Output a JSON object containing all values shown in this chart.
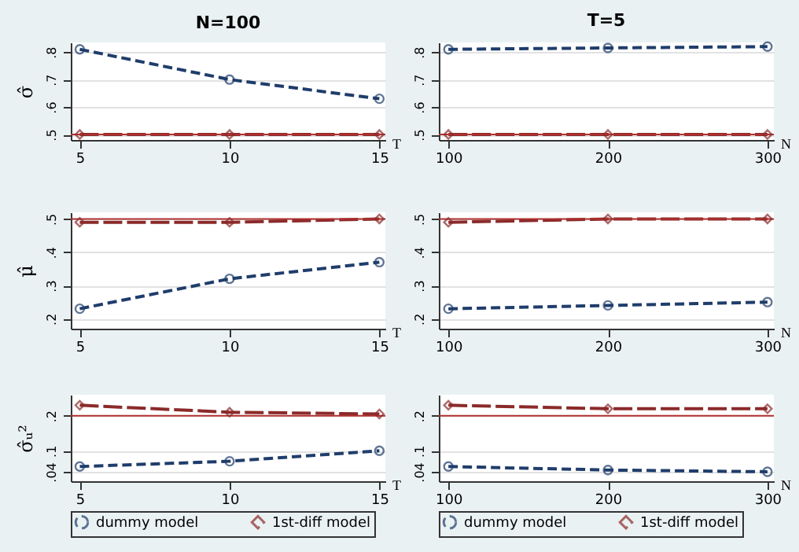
{
  "chart_data": [
    {
      "type": "line",
      "title": "N=100",
      "xlabel": "T",
      "ylabel": "σ̂",
      "x": [
        5,
        10,
        15
      ],
      "xlim": [
        4.7,
        15.2
      ],
      "xticks": [
        5,
        10,
        15
      ],
      "ylim": [
        0.48,
        0.835
      ],
      "yticks": [
        {
          "value": 0.5,
          "label": ".5"
        },
        {
          "value": 0.6,
          "label": ".6"
        },
        {
          "value": 0.7,
          "label": ".7"
        },
        {
          "value": 0.8,
          "label": ".8"
        }
      ],
      "grid": "y",
      "legend": false,
      "line_style": "dashed",
      "ref_lines": [
        {
          "axis": "y",
          "value": 0.5,
          "color": "#b03030"
        }
      ],
      "series": [
        {
          "color": "#1f3d6b",
          "marker": "circle",
          "values": [
            0.81,
            0.7,
            0.63
          ]
        },
        {
          "color": "#8b2a2a",
          "marker": "diamond",
          "values": [
            0.5,
            0.5,
            0.5
          ]
        }
      ]
    },
    {
      "type": "line",
      "title": "T=5",
      "xlabel": "N",
      "x": [
        100,
        200,
        300
      ],
      "xlim": [
        94,
        304
      ],
      "xticks": [
        100,
        200,
        300
      ],
      "ylim": [
        0.48,
        0.835
      ],
      "yticks": [
        {
          "value": 0.5,
          "label": ".5"
        },
        {
          "value": 0.6,
          "label": ".6"
        },
        {
          "value": 0.7,
          "label": ".7"
        },
        {
          "value": 0.8,
          "label": ".8"
        }
      ],
      "grid": "y",
      "legend": false,
      "line_style": "dashed",
      "ref_lines": [
        {
          "axis": "y",
          "value": 0.5,
          "color": "#b03030"
        }
      ],
      "series": [
        {
          "color": "#1f3d6b",
          "marker": "circle",
          "values": [
            0.81,
            0.815,
            0.82
          ]
        },
        {
          "color": "#8b2a2a",
          "marker": "diamond",
          "values": [
            0.5,
            0.5,
            0.5
          ]
        }
      ]
    },
    {
      "type": "line",
      "xlabel": "T",
      "ylabel": "μ̂",
      "x": [
        5,
        10,
        15
      ],
      "xlim": [
        4.7,
        15.2
      ],
      "xticks": [
        5,
        10,
        15
      ],
      "ylim": [
        0.17,
        0.52
      ],
      "yticks": [
        {
          "value": 0.2,
          "label": ".2"
        },
        {
          "value": 0.3,
          "label": ".3"
        },
        {
          "value": 0.4,
          "label": ".4"
        },
        {
          "value": 0.5,
          "label": ".5"
        }
      ],
      "grid": "y",
      "legend": false,
      "line_style": "dashed",
      "ref_lines": [
        {
          "axis": "y",
          "value": 0.5,
          "color": "#b03030"
        }
      ],
      "series": [
        {
          "color": "#1f3d6b",
          "marker": "circle",
          "values": [
            0.23,
            0.32,
            0.37
          ]
        },
        {
          "color": "#8b2a2a",
          "marker": "diamond",
          "values": [
            0.49,
            0.49,
            0.5
          ]
        }
      ]
    },
    {
      "type": "line",
      "xlabel": "N",
      "x": [
        100,
        200,
        300
      ],
      "xlim": [
        94,
        304
      ],
      "xticks": [
        100,
        200,
        300
      ],
      "ylim": [
        0.17,
        0.52
      ],
      "yticks": [
        {
          "value": 0.2,
          "label": ".2"
        },
        {
          "value": 0.3,
          "label": ".3"
        },
        {
          "value": 0.4,
          "label": ".4"
        },
        {
          "value": 0.5,
          "label": ".5"
        }
      ],
      "grid": "y",
      "legend": false,
      "line_style": "dashed",
      "ref_lines": [
        {
          "axis": "y",
          "value": 0.5,
          "color": "#b03030"
        }
      ],
      "series": [
        {
          "color": "#1f3d6b",
          "marker": "circle",
          "values": [
            0.23,
            0.24,
            0.25
          ]
        },
        {
          "color": "#8b2a2a",
          "marker": "diamond",
          "values": [
            0.49,
            0.5,
            0.5
          ]
        }
      ]
    },
    {
      "type": "line",
      "xlabel": "T",
      "ylabel": "σ̂ᵤ²",
      "x": [
        5,
        10,
        15
      ],
      "xlim": [
        4.7,
        15.2
      ],
      "xticks": [
        5,
        10,
        15
      ],
      "ylim": [
        0.013,
        0.26
      ],
      "yticks": [
        {
          "value": 0.04,
          "label": ".04"
        },
        {
          "value": 0.1,
          "label": ".1"
        },
        {
          "value": 0.2,
          "label": ".2"
        }
      ],
      "grid": "y",
      "legend": "bottom",
      "line_style": "dashed",
      "ref_lines": [
        {
          "axis": "y",
          "value": 0.2,
          "color": "#b03030"
        }
      ],
      "series": [
        {
          "name": "dummy model",
          "color": "#1f3d6b",
          "marker": "circle",
          "values": [
            0.055,
            0.07,
            0.1
          ]
        },
        {
          "name": "1st-diff model",
          "color": "#8b2a2a",
          "marker": "diamond",
          "values": [
            0.23,
            0.21,
            0.205
          ]
        }
      ]
    },
    {
      "type": "line",
      "xlabel": "N",
      "x": [
        100,
        200,
        300
      ],
      "xlim": [
        94,
        304
      ],
      "xticks": [
        100,
        200,
        300
      ],
      "ylim": [
        0.013,
        0.26
      ],
      "yticks": [
        {
          "value": 0.04,
          "label": ".04"
        },
        {
          "value": 0.1,
          "label": ".1"
        },
        {
          "value": 0.2,
          "label": ".2"
        }
      ],
      "grid": "y",
      "legend": "bottom",
      "line_style": "dashed",
      "ref_lines": [
        {
          "axis": "y",
          "value": 0.2,
          "color": "#b03030"
        }
      ],
      "series": [
        {
          "name": "dummy model",
          "color": "#1f3d6b",
          "marker": "circle",
          "values": [
            0.055,
            0.045,
            0.04
          ]
        },
        {
          "name": "1st-diff model",
          "color": "#8b2a2a",
          "marker": "diamond",
          "values": [
            0.23,
            0.22,
            0.22
          ]
        }
      ]
    }
  ]
}
